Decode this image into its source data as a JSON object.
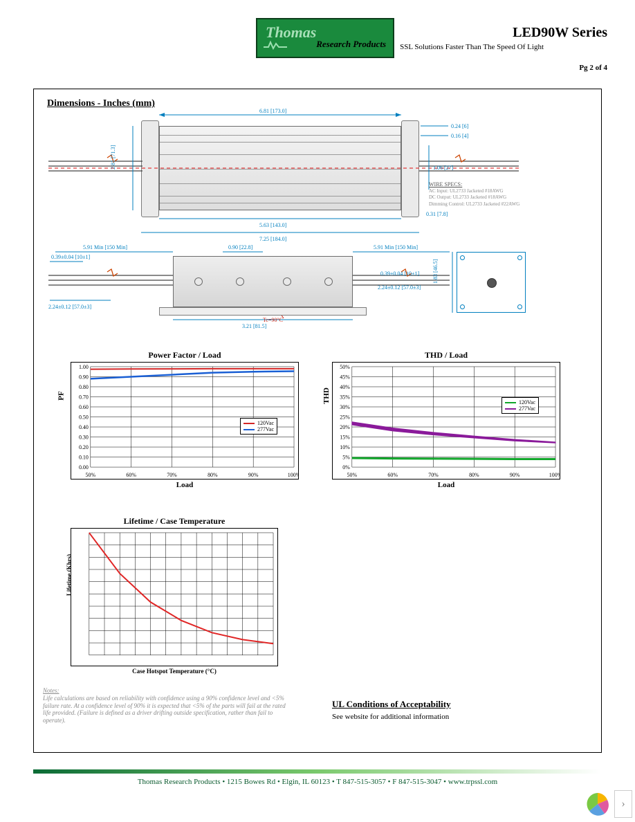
{
  "header": {
    "logo_top": "Thomas",
    "logo_bottom": "Research Products",
    "series": "LED90W Series",
    "tagline": "SSL Solutions Faster Than The Speed Of Light",
    "page_of": "Pg 2 of 4"
  },
  "sections": {
    "dimensions_title": "Dimensions - Inches (mm)",
    "ul_title": "UL Conditions of Acceptability",
    "ul_sub": "See website for additional information"
  },
  "dimensions": {
    "top_width": "6.81 [173.0]",
    "inner_width": "5.63 [143.0]",
    "full_width": "7.25 [184.0]",
    "height": "2.81 [71.3]",
    "tab_h": "0.24 [6]",
    "tab_gap": "0.16 [4]",
    "right_h": "1.06 [27]",
    "bottom_h": "0.31 [7.8]",
    "lead_min": "5.91 Min [150 Min]",
    "lead_strip": "0.39±0.04 [10±1]",
    "lead_len": "2.24±0.12 [57.0±3]",
    "side_width": "3.21 [81.5]",
    "hole_dia": "0.90 [22.8]",
    "end_h": "1.83 [46.5]",
    "tc": "Tc=90°C"
  },
  "wirespecs": {
    "heading": "WIRE SPECS:",
    "l1": "AC Input: UL2733 Jacketed #18AWG",
    "l2": "DC Output: UL2733 Jacketed #18AWG",
    "l3": "Dimming Control: UL2733 Jacketed #22AWG"
  },
  "notes": {
    "title": "Notes:",
    "body": "Life calculations are based on reliability with confidence using a 90% confidence level and <5% failure rate. At a confidence level of 90% it is expected that <5% of the parts will fail at the rated life provided. (Failure is defined as a driver drifting outside specification, rather than fail to operate)."
  },
  "colors": {
    "dim_blue": "#007fbf",
    "series_120": "#d32626",
    "series_277": "#1a5fd4",
    "thd_120": "#10a62a",
    "thd_277": "#8a1a9a",
    "lifetime": "#e02626",
    "grid": "#000000"
  },
  "chart_pf": {
    "title": "Power Factor / Load",
    "xlabel": "Load",
    "ylabel": "PF",
    "xticks": [
      "50%",
      "60%",
      "70%",
      "80%",
      "90%",
      "100%"
    ],
    "yticks": [
      "0.00",
      "0.10",
      "0.20",
      "0.30",
      "0.40",
      "0.50",
      "0.60",
      "0.70",
      "0.80",
      "0.90",
      "1.00"
    ],
    "legend": [
      {
        "label": "120Vac",
        "color": "#d32626"
      },
      {
        "label": "277Vac",
        "color": "#1a5fd4"
      }
    ],
    "series_120_y": [
      0.975,
      0.977,
      0.978,
      0.98,
      0.98,
      0.98
    ],
    "series_277_y": [
      0.88,
      0.9,
      0.92,
      0.94,
      0.95,
      0.955
    ]
  },
  "chart_thd": {
    "title": "THD / Load",
    "xlabel": "Load",
    "ylabel": "THD",
    "xticks": [
      "50%",
      "60%",
      "70%",
      "80%",
      "90%",
      "100%"
    ],
    "yticks_pct": [
      0,
      5,
      10,
      15,
      20,
      25,
      30,
      35,
      40,
      45,
      50
    ],
    "legend": [
      {
        "label": "120Vac",
        "color": "#10a62a"
      },
      {
        "label": "277Vac",
        "color": "#8a1a9a"
      }
    ],
    "series_120_y": [
      4.5,
      4.3,
      4.2,
      4.1,
      4.0,
      4.0
    ],
    "series_277_lo": [
      21,
      18,
      16,
      14.5,
      13,
      12
    ],
    "series_277_hi": [
      22.5,
      19.5,
      17.3,
      15.5,
      13.8,
      12.5
    ]
  },
  "chart_life": {
    "title": "Lifetime / Case Temperature",
    "subtitle": "",
    "xlabel": "Case Hotspot Temperature        (°C)",
    "ylabel": "Lifetime     (Khrs)",
    "x_range": [
      40,
      100
    ],
    "x_steps": 12,
    "y_range": [
      0,
      300
    ],
    "y_steps": 10,
    "curve_x": [
      40,
      50,
      60,
      70,
      80,
      90,
      100
    ],
    "curve_y": [
      300,
      200,
      130,
      85,
      55,
      38,
      28
    ]
  },
  "footer": {
    "text": "Thomas Research Products  •  1215 Bowes Rd  •  Elgin, IL 60123  •  T 847-515-3057  •  F 847-515-3047  •  www.trpssl.com"
  }
}
